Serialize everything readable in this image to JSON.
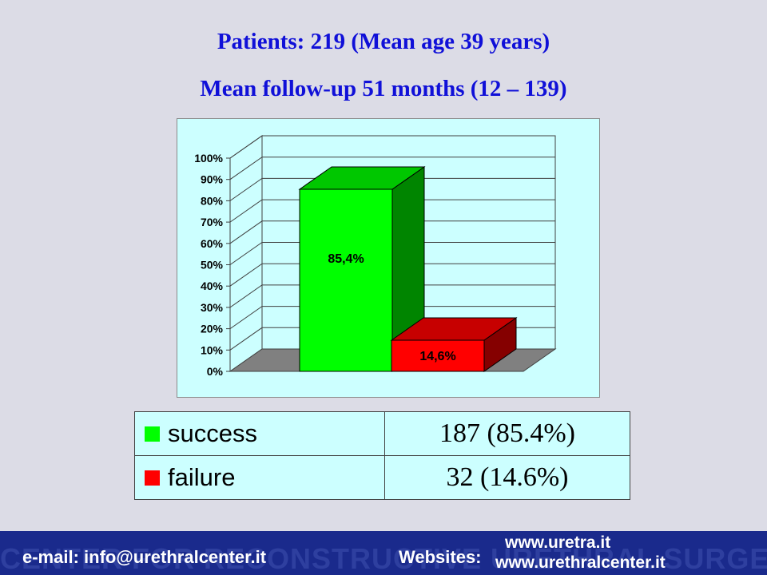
{
  "titles": {
    "line1": "Patients: 219 (Mean age 39 years)",
    "line2": "Mean follow-up 51 months (12 – 139)"
  },
  "chart_data": {
    "type": "bar",
    "categories": [
      "success",
      "failure"
    ],
    "values": [
      85.4,
      14.6
    ],
    "data_labels": [
      "85,4%",
      "14,6%"
    ],
    "ylim": [
      0,
      100
    ],
    "yticks": [
      "0%",
      "10%",
      "20%",
      "30%",
      "40%",
      "50%",
      "60%",
      "70%",
      "80%",
      "90%",
      "100%"
    ],
    "colors": [
      "#00ff00",
      "#ff0000"
    ],
    "grid": true,
    "three_d": true
  },
  "legend_table": {
    "rows": [
      {
        "label": "success",
        "value": "187 (85.4%)",
        "color": "#00ff00"
      },
      {
        "label": "failure",
        "value": "32 (14.6%)",
        "color": "#ff0000"
      }
    ]
  },
  "footer": {
    "watermark": "CENTER FOR RECONSTRUCTIVE URETHRAL SURGERY",
    "email": "e-mail: info@urethralcenter.it",
    "websites_label": "Websites:",
    "site1": "www.uretra.it",
    "site2": "www.urethralcenter.it"
  }
}
